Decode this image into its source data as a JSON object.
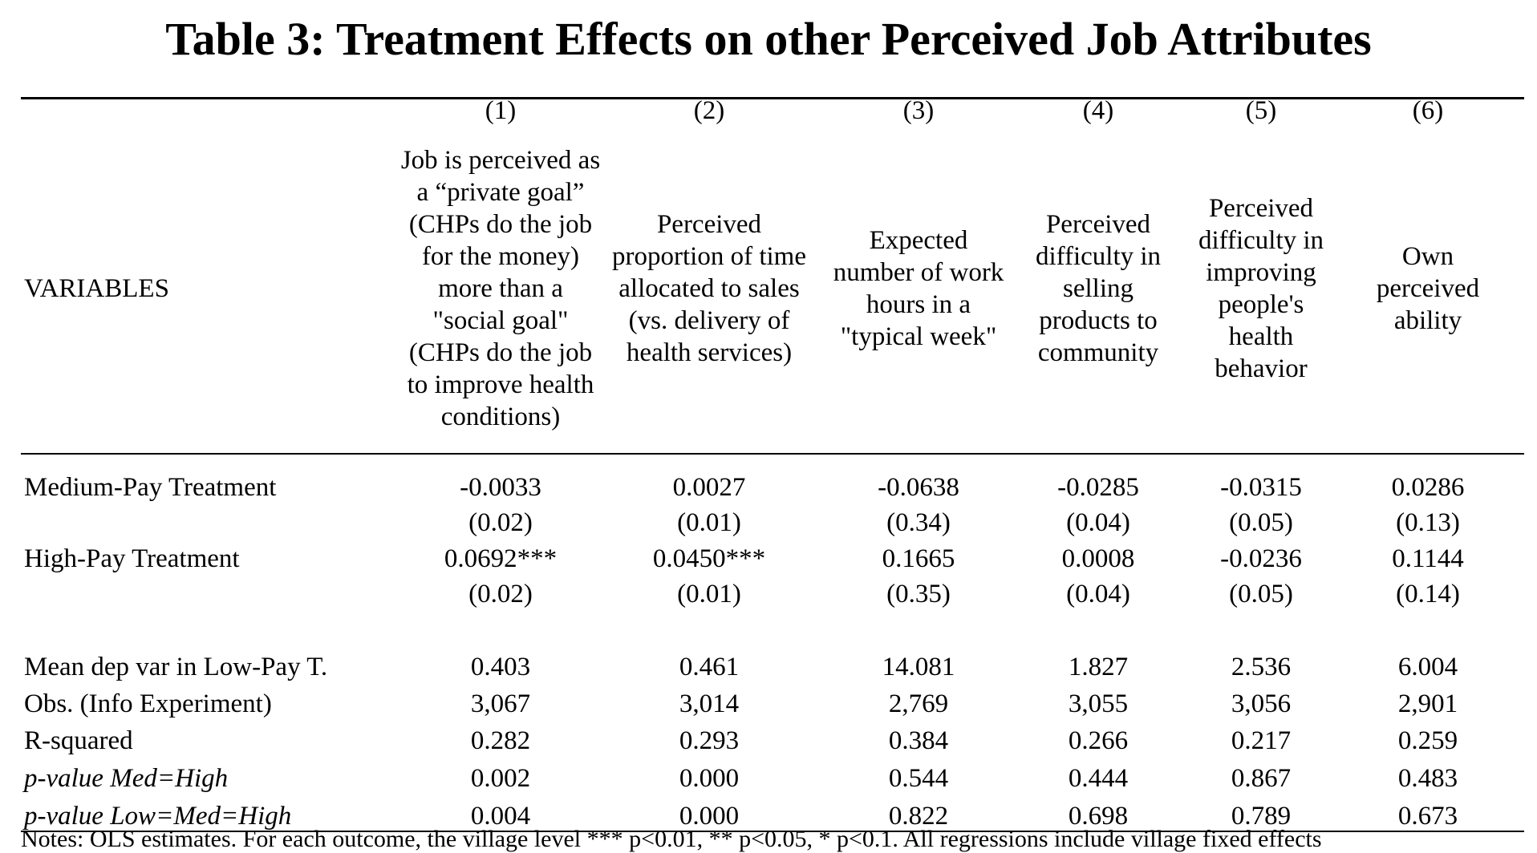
{
  "title": "Table 3: Treatment Effects on other Perceived Job Attributes",
  "variables_label": "VARIABLES",
  "columns": [
    {
      "num": "(1)",
      "header": "Job is perceived as a “private goal” (CHPs do the job for the money) more than a \"social goal\" (CHPs do the job to improve health conditions)"
    },
    {
      "num": "(2)",
      "header": "Perceived proportion of time allocated to sales (vs. delivery of health services)"
    },
    {
      "num": "(3)",
      "header": "Expected number of work hours in a \"typical week\""
    },
    {
      "num": "(4)",
      "header": "Perceived difficulty in selling products to community"
    },
    {
      "num": "(5)",
      "header": "Perceived difficulty in improving people's health behavior"
    },
    {
      "num": "(6)",
      "header": "Own perceived ability"
    }
  ],
  "rows": [
    {
      "label": "Medium-Pay Treatment",
      "italic": false,
      "values": [
        "-0.0033",
        "0.0027",
        "-0.0638",
        "-0.0285",
        "-0.0315",
        "0.0286"
      ]
    },
    {
      "label": "",
      "italic": false,
      "values": [
        "(0.02)",
        "(0.01)",
        "(0.34)",
        "(0.04)",
        "(0.05)",
        "(0.13)"
      ]
    },
    {
      "label": "High-Pay Treatment",
      "italic": false,
      "values": [
        "0.0692***",
        "0.0450***",
        "0.1665",
        "0.0008",
        "-0.0236",
        "0.1144"
      ]
    },
    {
      "label": "",
      "italic": false,
      "values": [
        "(0.02)",
        "(0.01)",
        "(0.35)",
        "(0.04)",
        "(0.05)",
        "(0.14)"
      ]
    },
    {
      "label": "Mean dep var in Low-Pay T.",
      "italic": false,
      "values": [
        "0.403",
        "0.461",
        "14.081",
        "1.827",
        "2.536",
        "6.004"
      ]
    },
    {
      "label": "Obs. (Info Experiment)",
      "italic": false,
      "values": [
        "3,067",
        "3,014",
        "2,769",
        "3,055",
        "3,056",
        "2,901"
      ]
    },
    {
      "label": "R-squared",
      "italic": false,
      "values": [
        "0.282",
        "0.293",
        "0.384",
        "0.266",
        "0.217",
        "0.259"
      ]
    },
    {
      "label": "p-value Med=High",
      "italic": true,
      "values": [
        "0.002",
        "0.000",
        "0.544",
        "0.444",
        "0.867",
        "0.483"
      ]
    },
    {
      "label": "p-value Low=Med=High",
      "italic": true,
      "values": [
        "0.004",
        "0.000",
        "0.822",
        "0.698",
        "0.789",
        "0.673"
      ]
    }
  ],
  "notes": "Notes: OLS estimates. For each outcome, the village level *** p<0.01, ** p<0.05, * p<0.1. All regressions include village fixed effects"
}
